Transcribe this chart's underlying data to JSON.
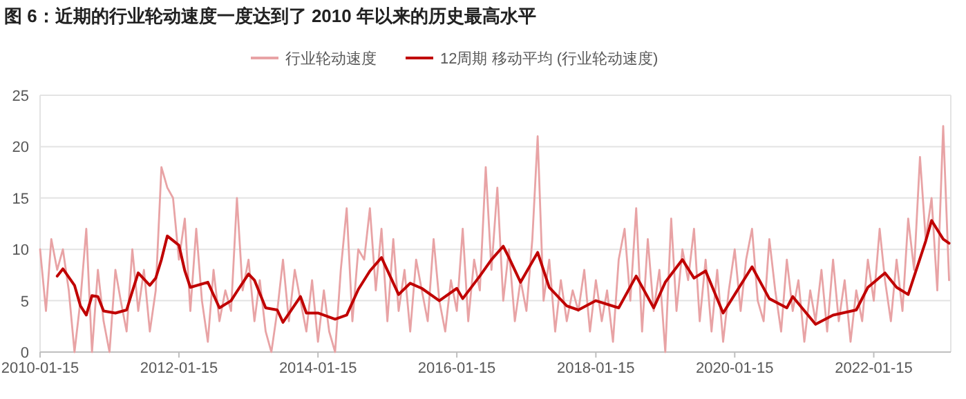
{
  "chart_data": {
    "type": "line",
    "title": "图 6：近期的行业轮动速度一度达到了 2010 年以来的历史最高水平",
    "xlim": [
      "2010-01-15",
      "2023-02-24"
    ],
    "xticks": [
      {
        "value": "2010-01-15",
        "label": "2010-01-15"
      },
      {
        "value": "2012-01-15",
        "label": "2012-01-15"
      },
      {
        "value": "2014-01-15",
        "label": "2014-01-15"
      },
      {
        "value": "2016-01-15",
        "label": "2016-01-15"
      },
      {
        "value": "2018-01-15",
        "label": "2018-01-15"
      },
      {
        "value": "2020-01-15",
        "label": "2020-01-15"
      },
      {
        "value": "2022-01-15",
        "label": "2022-01-15"
      }
    ],
    "ylim": [
      0,
      25
    ],
    "yticks": [
      0,
      5,
      10,
      15,
      20,
      25
    ],
    "grid": "y",
    "legend": "top",
    "line_style": "solid",
    "marker": "none",
    "series": [
      {
        "name": "行业轮动速度",
        "color": "#e8a3a5",
        "x": [
          "2010-01-15",
          "2010-02",
          "2010-03",
          "2010-04",
          "2010-05",
          "2010-06",
          "2010-07",
          "2010-08",
          "2010-09",
          "2010-10",
          "2010-11",
          "2010-12",
          "2011-01",
          "2011-02",
          "2011-03",
          "2011-04",
          "2011-05",
          "2011-06",
          "2011-07",
          "2011-08",
          "2011-09",
          "2011-10",
          "2011-11",
          "2011-12",
          "2012-01",
          "2012-02",
          "2012-03",
          "2012-04",
          "2012-05",
          "2012-06",
          "2012-07",
          "2012-08",
          "2012-09",
          "2012-10",
          "2012-11",
          "2012-12",
          "2013-01",
          "2013-02",
          "2013-03",
          "2013-04",
          "2013-05",
          "2013-06",
          "2013-07",
          "2013-08",
          "2013-09",
          "2013-10",
          "2013-11",
          "2013-12",
          "2014-01",
          "2014-02",
          "2014-03",
          "2014-04",
          "2014-05",
          "2014-06",
          "2014-07",
          "2014-08",
          "2014-09",
          "2014-10",
          "2014-11",
          "2014-12",
          "2015-01",
          "2015-02",
          "2015-03",
          "2015-04",
          "2015-05",
          "2015-06",
          "2015-07",
          "2015-08",
          "2015-09",
          "2015-10",
          "2015-11",
          "2015-12",
          "2016-01",
          "2016-02",
          "2016-03",
          "2016-04",
          "2016-05",
          "2016-06",
          "2016-07",
          "2016-08",
          "2016-09",
          "2016-10",
          "2016-11",
          "2016-12",
          "2017-01",
          "2017-02",
          "2017-03",
          "2017-04",
          "2017-05",
          "2017-06",
          "2017-07",
          "2017-08",
          "2017-09",
          "2017-10",
          "2017-11",
          "2017-12",
          "2018-01",
          "2018-02",
          "2018-03",
          "2018-04",
          "2018-05",
          "2018-06",
          "2018-07",
          "2018-08",
          "2018-09",
          "2018-10",
          "2018-11",
          "2018-12",
          "2019-01",
          "2019-02",
          "2019-03",
          "2019-04",
          "2019-05",
          "2019-06",
          "2019-07",
          "2019-08",
          "2019-09",
          "2019-10",
          "2019-11",
          "2019-12",
          "2020-01",
          "2020-02",
          "2020-03",
          "2020-04",
          "2020-05",
          "2020-06",
          "2020-07",
          "2020-08",
          "2020-09",
          "2020-10",
          "2020-11",
          "2020-12",
          "2021-01",
          "2021-02",
          "2021-03",
          "2021-04",
          "2021-05",
          "2021-06",
          "2021-07",
          "2021-08",
          "2021-09",
          "2021-10",
          "2021-11",
          "2021-12",
          "2022-01",
          "2022-02",
          "2022-03",
          "2022-04",
          "2022-05",
          "2022-06",
          "2022-07",
          "2022-08",
          "2022-09",
          "2022-10",
          "2022-11",
          "2022-12",
          "2023-01",
          "2023-02"
        ],
        "values": [
          10,
          4,
          11,
          8,
          10,
          6,
          0,
          5,
          12,
          0,
          8,
          3,
          0,
          8,
          5,
          2,
          10,
          4,
          8,
          2,
          6,
          18,
          16,
          15,
          9,
          13,
          4,
          12,
          5,
          1,
          8,
          3,
          6,
          4,
          15,
          6,
          9,
          3,
          7,
          2,
          0,
          4,
          9,
          3,
          8,
          5,
          2,
          7,
          1,
          6,
          2,
          0,
          8,
          14,
          3,
          10,
          9,
          14,
          6,
          12,
          3,
          11,
          4,
          8,
          2,
          9,
          6,
          3,
          11,
          5,
          2,
          7,
          4,
          12,
          3,
          9,
          6,
          18,
          8,
          16,
          5,
          10,
          3,
          7,
          4,
          11,
          21,
          5,
          9,
          2,
          7,
          3,
          6,
          4,
          8,
          2,
          7,
          3,
          6,
          1,
          9,
          12,
          5,
          14,
          2,
          11,
          4,
          8,
          0,
          13,
          4,
          10,
          7,
          12,
          3,
          9,
          2,
          8,
          1,
          6,
          10,
          4,
          9,
          12,
          5,
          3,
          11,
          6,
          2,
          9,
          4,
          7,
          1,
          6,
          3,
          8,
          2,
          9,
          3,
          7,
          1,
          6,
          3,
          9,
          5,
          12,
          7,
          3,
          9,
          4,
          13,
          8,
          19,
          11,
          15,
          6,
          22,
          7
        ]
      },
      {
        "name": "12周期 移动平均 (行业轮动速度)",
        "color": "#c00000",
        "x": [
          "2010-04",
          "2010-05",
          "2010-07",
          "2010-08",
          "2010-09",
          "2010-10",
          "2010-11",
          "2010-12",
          "2011-02",
          "2011-04",
          "2011-05",
          "2011-06",
          "2011-08",
          "2011-09",
          "2011-10",
          "2011-11",
          "2012-01",
          "2012-02",
          "2012-03",
          "2012-06",
          "2012-08",
          "2012-10",
          "2012-11",
          "2013-01",
          "2013-02",
          "2013-04",
          "2013-06",
          "2013-07",
          "2013-10",
          "2013-11",
          "2014-01",
          "2014-04",
          "2014-06",
          "2014-08",
          "2014-10",
          "2014-12",
          "2015-03",
          "2015-05",
          "2015-07",
          "2015-10",
          "2016-01",
          "2016-02",
          "2016-05",
          "2016-07",
          "2016-09",
          "2016-10",
          "2016-12",
          "2017-03",
          "2017-05",
          "2017-08",
          "2017-10",
          "2018-01",
          "2018-05",
          "2018-08",
          "2018-11",
          "2019-01",
          "2019-04",
          "2019-06",
          "2019-08",
          "2019-11",
          "2020-01",
          "2020-04",
          "2020-07",
          "2020-10",
          "2020-11",
          "2021-03",
          "2021-06",
          "2021-10",
          "2021-12",
          "2022-03",
          "2022-05",
          "2022-07",
          "2022-10",
          "2022-11",
          "2023-01",
          "2023-02"
        ],
        "values": [
          7.4,
          8.1,
          6.5,
          4.5,
          3.6,
          5.5,
          5.4,
          4.0,
          3.8,
          4.1,
          5.9,
          7.7,
          6.5,
          7.2,
          9,
          11.3,
          10.4,
          7.9,
          6.3,
          6.8,
          4.3,
          5.0,
          5.9,
          7.6,
          7.0,
          4.3,
          4.1,
          2.9,
          5.4,
          3.8,
          3.8,
          3.2,
          3.6,
          6.1,
          7.9,
          9.2,
          5.6,
          6.7,
          6.2,
          5.0,
          6.2,
          5.2,
          7.4,
          9.0,
          10.3,
          9.2,
          6.8,
          9.7,
          6.3,
          4.5,
          4.1,
          5.0,
          4.3,
          7.4,
          4.3,
          6.8,
          9.0,
          7.2,
          7.9,
          3.8,
          5.6,
          8.3,
          5.2,
          4.3,
          5.4,
          2.7,
          3.6,
          4.1,
          6.3,
          7.7,
          6.3,
          5.6,
          10.8,
          12.8,
          11.0,
          10.6
        ]
      }
    ]
  }
}
